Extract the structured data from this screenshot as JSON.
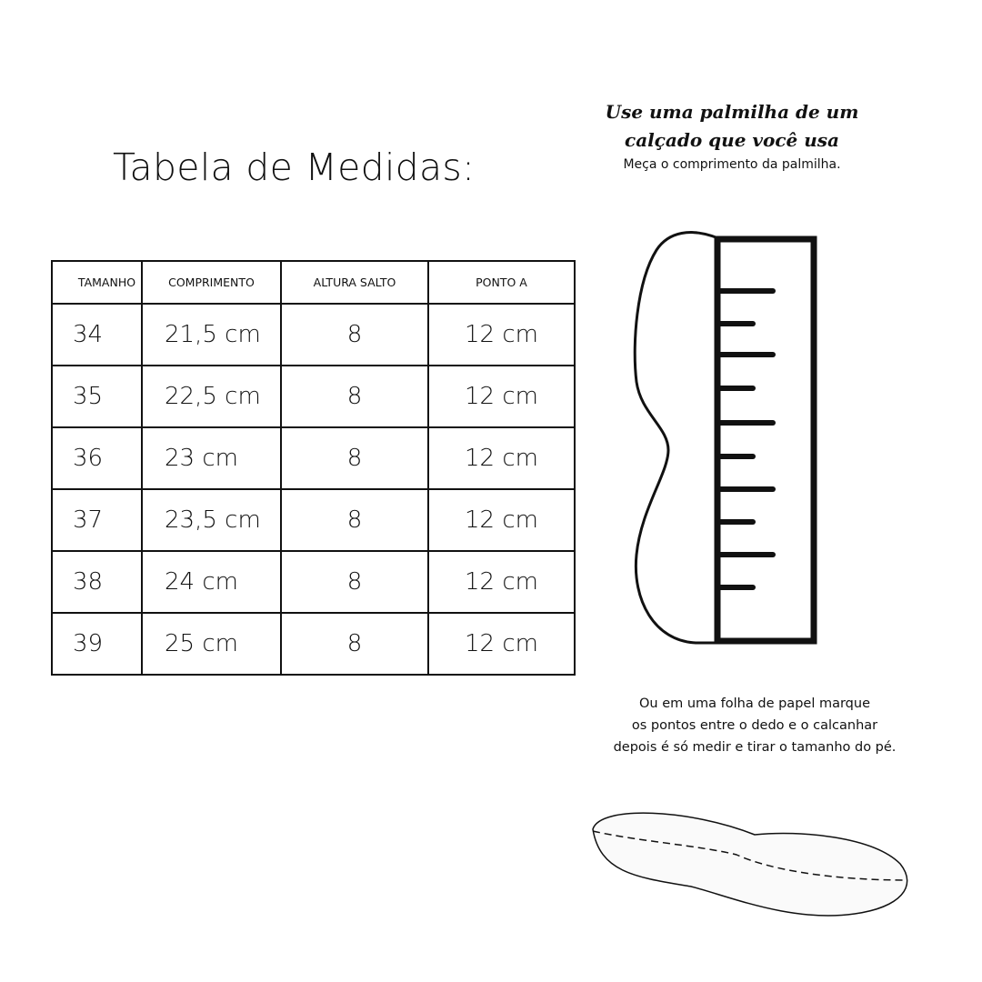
{
  "title": "Tabela de Medidas:",
  "instructions": {
    "heading_line1": "Use uma palmilha de um",
    "heading_line2": "calçado que você usa",
    "subtext": "Meça o comprimento da palmilha.",
    "alt_line1": "Ou em uma folha de papel marque",
    "alt_line2": "os pontos entre o dedo e o calcanhar",
    "alt_line3": "depois é só medir e tirar o tamanho do pé."
  },
  "table": {
    "headers": [
      "TAMANHO",
      "COMPRIMENTO",
      "ALTURA SALTO",
      "PONTO A"
    ],
    "rows": [
      [
        "34",
        "21,5 cm",
        "8",
        "12 cm"
      ],
      [
        "35",
        "22,5 cm",
        "8",
        "12 cm"
      ],
      [
        "36",
        "23 cm",
        "8",
        "12 cm"
      ],
      [
        "37",
        "23,5 cm",
        "8",
        "12 cm"
      ],
      [
        "38",
        "24 cm",
        "8",
        "12 cm"
      ],
      [
        "39",
        "25 cm",
        "8",
        "12 cm"
      ]
    ]
  }
}
